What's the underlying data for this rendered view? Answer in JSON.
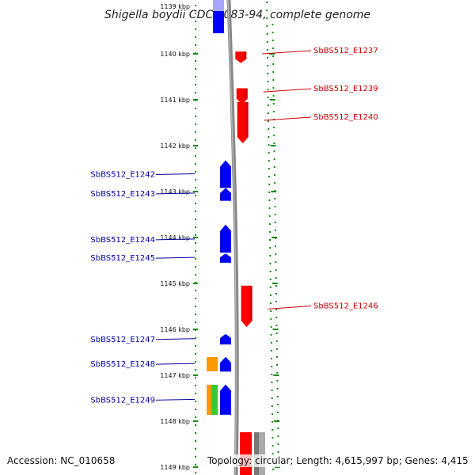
{
  "title": "Shigella boydii CDC 3083-94, complete genome",
  "footer": {
    "accession": "Accession: NC_010658",
    "topology": "Topology: circular; Length: 4,615,997 bp; Genes: 4,415"
  },
  "scale": {
    "unit": "kbp",
    "top_label": "1139 kbp",
    "ticks": [
      "1140 kbp",
      "1141 kbp",
      "1142 kbp",
      "1143 kbp",
      "1144 kbp",
      "1145 kbp",
      "1146 kbp",
      "1147 kbp",
      "1148 kbp",
      "1149 kbp"
    ]
  },
  "colors": {
    "forward_gene": "#ff0000",
    "reverse_gene": "#0000ff",
    "label_forward": "#cc0000",
    "label_reverse": "#0000a0",
    "dots": "#1a8a1a",
    "backbone": "#888888",
    "orange": "#ff9900",
    "green": "#33cc33",
    "gray": "#777777"
  },
  "genes_forward": [
    {
      "label": "SbBS512_E1237",
      "start_kbp": 1139.95,
      "end_kbp": 1140.2,
      "label_kbp": 1139.93
    },
    {
      "label": "SbBS512_E1239",
      "start_kbp": 1140.75,
      "end_kbp": 1141.1,
      "label_kbp": 1140.76
    },
    {
      "label": "SbBS512_E1240",
      "start_kbp": 1141.05,
      "end_kbp": 1141.95,
      "label_kbp": 1141.38
    },
    {
      "label": "SbBS512_E1246",
      "start_kbp": 1145.05,
      "end_kbp": 1145.95,
      "label_kbp": 1145.49
    }
  ],
  "genes_reverse": [
    {
      "label": "SbBS512_E1242",
      "start_kbp": 1142.32,
      "end_kbp": 1142.92,
      "label_kbp": 1142.63
    },
    {
      "label": "SbBS512_E1243",
      "start_kbp": 1142.92,
      "end_kbp": 1143.2,
      "label_kbp": 1143.05
    },
    {
      "label": "SbBS512_E1244",
      "start_kbp": 1143.72,
      "end_kbp": 1144.33,
      "label_kbp": 1144.05
    },
    {
      "label": "SbBS512_E1245",
      "start_kbp": 1144.35,
      "end_kbp": 1144.55,
      "label_kbp": 1144.45
    },
    {
      "label": "SbBS512_E1247",
      "start_kbp": 1146.1,
      "end_kbp": 1146.33,
      "label_kbp": 1146.22
    },
    {
      "label": "SbBS512_E1248",
      "start_kbp": 1146.6,
      "end_kbp": 1146.92,
      "label_kbp": 1146.76
    },
    {
      "label": "SbBS512_E1249",
      "start_kbp": 1147.2,
      "end_kbp": 1147.86,
      "label_kbp": 1147.54
    }
  ]
}
